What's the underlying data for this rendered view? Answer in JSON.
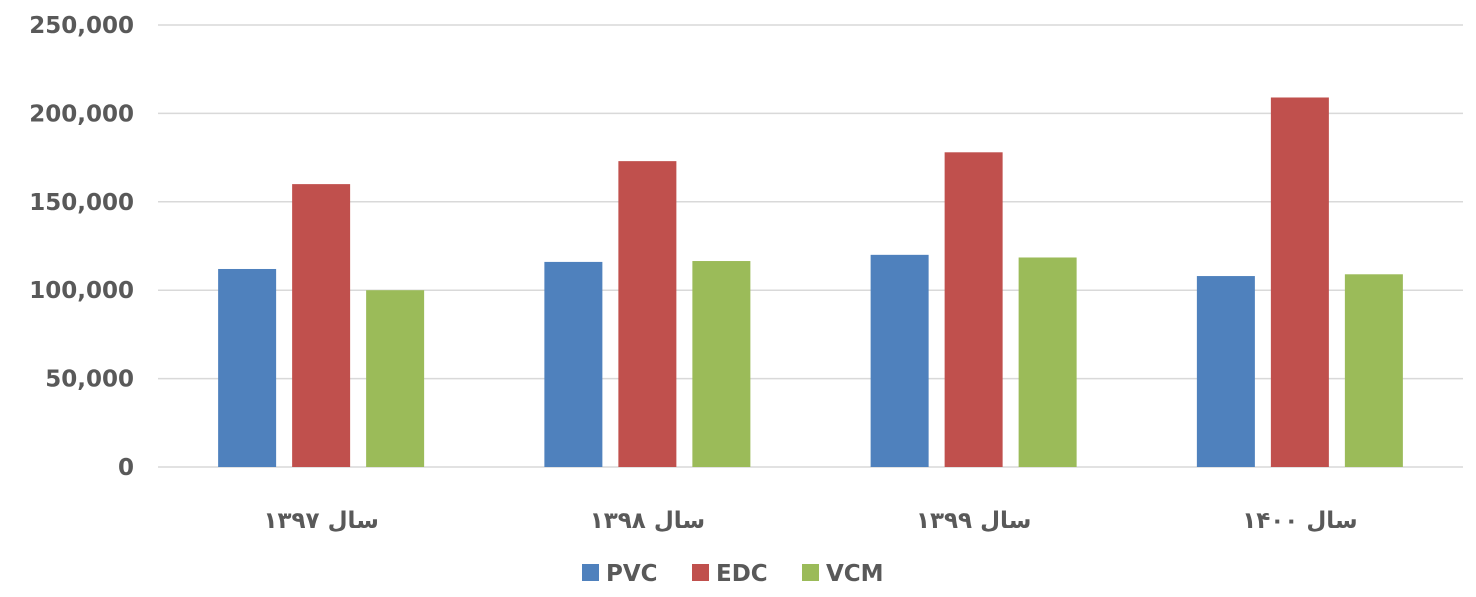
{
  "chart_data": {
    "type": "bar",
    "categories": [
      "سال ۱۳۹۷",
      "سال ۱۳۹۸",
      "سال ۱۳۹۹",
      "سال ۱۴۰۰"
    ],
    "series": [
      {
        "name": "PVC",
        "color": "#4F81BD",
        "values": [
          112000,
          116000,
          120000,
          108000
        ]
      },
      {
        "name": "EDC",
        "color": "#C0504D",
        "values": [
          160000,
          173000,
          178000,
          209000
        ]
      },
      {
        "name": "VCM",
        "color": "#9BBB59",
        "values": [
          100000,
          116500,
          118500,
          109000
        ]
      }
    ],
    "y_ticks": [
      "0",
      "50,000",
      "100,000",
      "150,000",
      "200,000",
      "250,000"
    ],
    "ylim": [
      0,
      250000
    ],
    "grid": true,
    "legend_position": "bottom"
  }
}
